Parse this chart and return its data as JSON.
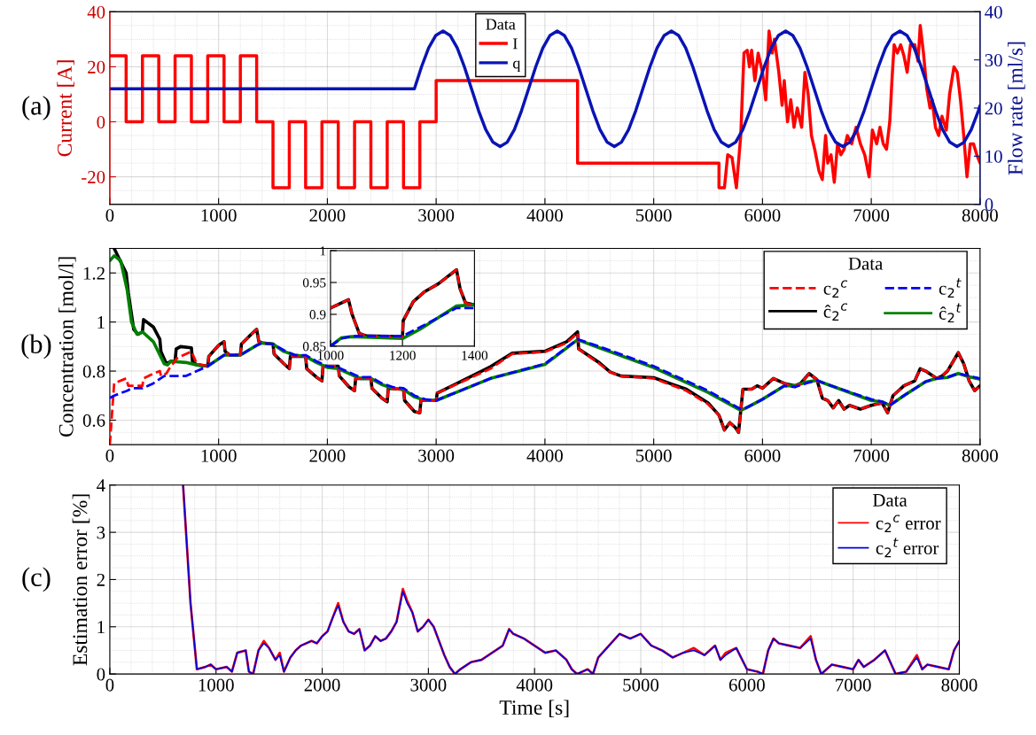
{
  "chart_data": [
    {
      "type": "line",
      "ylabel": "Current [A]",
      "y2label": "Flow rate [ml/s]",
      "legend_title": "Data",
      "legend": "top",
      "grid": true,
      "annotations": [
        "(a)"
      ],
      "xlim": [
        0,
        8000
      ],
      "xticks": [
        0,
        1000,
        2000,
        3000,
        4000,
        5000,
        6000,
        7000,
        8000
      ],
      "ylim": [
        -30,
        40
      ],
      "yticks": [
        -20,
        0,
        20,
        40
      ],
      "y2lim": [
        0,
        40
      ],
      "y2ticks": [
        0,
        10,
        20,
        30,
        40
      ],
      "series": [
        {
          "name": "I",
          "color": "#ff0000",
          "line_style": "solid",
          "x": [
            0,
            150,
            150,
            300,
            300,
            450,
            450,
            600,
            600,
            750,
            750,
            900,
            900,
            1050,
            1050,
            1200,
            1200,
            1350,
            1350,
            1500,
            1500,
            1650,
            1650,
            1800,
            1800,
            1950,
            1950,
            2100,
            2100,
            2250,
            2250,
            2400,
            2400,
            2550,
            2550,
            2700,
            2700,
            2850,
            2850,
            3000,
            3000,
            4300,
            4300,
            5600,
            5600,
            5650,
            5680,
            5720,
            5760,
            5800,
            5830,
            5860,
            5880,
            5900,
            5930,
            5960,
            6000,
            6030,
            6060,
            6090,
            6110,
            6150,
            6180,
            6200,
            6230,
            6260,
            6290,
            6320,
            6360,
            6390,
            6420,
            6450,
            6480,
            6520,
            6550,
            6580,
            6600,
            6630,
            6660,
            6690,
            6720,
            6750,
            6780,
            6820,
            6860,
            6900,
            6940,
            6980,
            7010,
            7050,
            7080,
            7110,
            7140,
            7170,
            7190,
            7210,
            7240,
            7270,
            7300,
            7330,
            7360,
            7400,
            7430,
            7450,
            7480,
            7510,
            7540,
            7560,
            7590,
            7620,
            7650,
            7690,
            7720,
            7760,
            7790,
            7820,
            7850,
            7880,
            7910,
            7940,
            7970,
            8000
          ],
          "values": [
            24,
            24,
            0,
            0,
            24,
            24,
            0,
            0,
            24,
            24,
            0,
            0,
            24,
            24,
            0,
            0,
            24,
            24,
            0,
            0,
            -24,
            -24,
            0,
            0,
            -24,
            -24,
            0,
            0,
            -24,
            -24,
            0,
            0,
            -24,
            -24,
            0,
            0,
            -24,
            -24,
            0,
            0,
            15,
            15,
            -15,
            -15,
            -24,
            -24,
            -12,
            -13,
            -24,
            -5,
            25,
            26,
            20,
            26,
            15,
            25,
            18,
            8,
            33,
            25,
            30,
            18,
            6,
            15,
            0,
            8,
            -2,
            5,
            -2,
            18,
            10,
            -5,
            -10,
            -18,
            -21,
            -5,
            -15,
            -12,
            -22,
            -8,
            -12,
            -10,
            -5,
            -8,
            -2,
            -8,
            -12,
            -20,
            -3,
            -8,
            -2,
            -8,
            -10,
            0,
            15,
            28,
            25,
            28,
            24,
            18,
            28,
            28,
            22,
            35,
            25,
            12,
            5,
            8,
            -2,
            -5,
            2,
            -3,
            10,
            20,
            18,
            8,
            -5,
            -20,
            -8,
            -8,
            -12,
            -15
          ]
        },
        {
          "name": "q",
          "color": "#0a14b4",
          "line_style": "solid",
          "axis": "y2",
          "x": [
            0,
            2800,
            2866,
            2931,
            2997,
            3063,
            3128,
            3194,
            3259,
            3325,
            3391,
            3456,
            3522,
            3588,
            3653,
            3719,
            3784,
            3850,
            3916,
            3981,
            4047,
            4113,
            4178,
            4244,
            4309,
            4375,
            4441,
            4506,
            4572,
            4638,
            4703,
            4769,
            4834,
            4900,
            4966,
            5031,
            5097,
            5163,
            5228,
            5294,
            5359,
            5425,
            5491,
            5556,
            5622,
            5688,
            5753,
            5819,
            5884,
            5950,
            6016,
            6081,
            6147,
            6213,
            6278,
            6344,
            6409,
            6475,
            6541,
            6606,
            6672,
            6738,
            6803,
            6869,
            6934,
            7000,
            7066,
            7131,
            7197,
            7263,
            7328,
            7394,
            7459,
            7525,
            7591,
            7656,
            7722,
            7788,
            7853,
            7919,
            7984,
            8000
          ],
          "values": [
            24,
            24,
            28.6,
            32.5,
            35.1,
            36,
            35.1,
            32.5,
            28.6,
            24,
            19.4,
            15.5,
            12.9,
            12,
            12.9,
            15.5,
            19.4,
            24,
            28.6,
            32.5,
            35.1,
            36,
            35.1,
            32.5,
            28.6,
            24,
            19.4,
            15.5,
            12.9,
            12,
            12.9,
            15.5,
            19.4,
            24,
            28.6,
            32.5,
            35.1,
            36,
            35.1,
            32.5,
            28.6,
            24,
            19.4,
            15.5,
            12.9,
            12,
            12.9,
            15.5,
            19.4,
            24,
            28.6,
            32.5,
            35.1,
            36,
            35.1,
            32.5,
            28.6,
            24,
            19.4,
            15.5,
            12.9,
            12,
            12.9,
            15.5,
            19.4,
            24,
            28.6,
            32.5,
            35.1,
            36,
            35.1,
            32.5,
            28.6,
            24,
            19.4,
            15.5,
            12.9,
            12,
            12.9,
            15.5,
            19.4,
            20.5
          ]
        }
      ]
    },
    {
      "type": "line",
      "ylabel": "Concentration [mol/l]",
      "legend_title": "Data",
      "legend": "top right",
      "grid": true,
      "annotations": [
        "(b)"
      ],
      "xlim": [
        0,
        8000
      ],
      "xticks": [
        0,
        1000,
        2000,
        3000,
        4000,
        5000,
        6000,
        7000,
        8000
      ],
      "ylim": [
        0.5,
        1.3
      ],
      "yticks": [
        0.6,
        0.8,
        1,
        1.2
      ],
      "series": [
        {
          "name": "c$_{2}$$^{c}$",
          "color": "#ff0000",
          "line_style": "dashed",
          "x": [
            0,
            40,
            150,
            170,
            220,
            260,
            300,
            310,
            400,
            460,
            470,
            520,
            560,
            600,
            610,
            650,
            750,
            760,
            800,
            900,
            910,
            1000,
            1050,
            1060,
            1100,
            1200,
            1210,
            1300,
            1350,
            1370,
            1400,
            1500,
            1510,
            1600,
            1650,
            1660,
            1800,
            1810,
            1900,
            1950,
            1960,
            2100,
            2110,
            2200,
            2250,
            2260,
            2400,
            2410,
            2500,
            2550,
            2560,
            2700,
            2710,
            2800,
            2850,
            2860,
            3000,
            3010,
            3500,
            3700,
            4000,
            4200,
            4300,
            4310,
            4500,
            4600,
            4700,
            5000,
            5300,
            5500,
            5600,
            5650,
            5700,
            5750,
            5780,
            5820,
            5850,
            5900,
            5950,
            6000,
            6050,
            6100,
            6200,
            6300,
            6350,
            6430,
            6500,
            6550,
            6600,
            6650,
            6700,
            6750,
            6800,
            6900,
            7000,
            7100,
            7150,
            7200,
            7300,
            7400,
            7450,
            7500,
            7600,
            7650,
            7700,
            7800,
            7850,
            7900,
            7950,
            8000
          ],
          "values": [
            0.5,
            0.75,
            0.77,
            0.74,
            0.74,
            0.74,
            0.74,
            0.77,
            0.79,
            0.8,
            0.78,
            0.79,
            0.82,
            0.84,
            0.85,
            0.86,
            0.88,
            0.87,
            0.83,
            0.82,
            0.86,
            0.905,
            0.92,
            0.88,
            0.866,
            0.866,
            0.91,
            0.95,
            0.97,
            0.92,
            0.915,
            0.91,
            0.87,
            0.83,
            0.81,
            0.86,
            0.86,
            0.81,
            0.775,
            0.76,
            0.82,
            0.82,
            0.78,
            0.735,
            0.72,
            0.77,
            0.77,
            0.73,
            0.69,
            0.675,
            0.73,
            0.725,
            0.68,
            0.635,
            0.63,
            0.68,
            0.68,
            0.71,
            0.81,
            0.87,
            0.878,
            0.915,
            0.955,
            0.89,
            0.83,
            0.795,
            0.78,
            0.77,
            0.72,
            0.665,
            0.62,
            0.56,
            0.59,
            0.57,
            0.55,
            0.726,
            0.726,
            0.726,
            0.74,
            0.73,
            0.75,
            0.77,
            0.75,
            0.735,
            0.75,
            0.79,
            0.765,
            0.69,
            0.68,
            0.65,
            0.68,
            0.645,
            0.66,
            0.645,
            0.66,
            0.67,
            0.63,
            0.7,
            0.74,
            0.76,
            0.81,
            0.8,
            0.77,
            0.78,
            0.8,
            0.875,
            0.83,
            0.76,
            0.72,
            0.74
          ]
        },
        {
          "name": "ĉ$_{2}$$^{c}$",
          "color": "#000000",
          "line_style": "solid",
          "x": [
            40,
            150,
            170,
            220,
            260,
            300,
            310,
            400,
            460,
            470,
            520,
            560,
            600,
            610,
            650,
            750,
            760,
            800,
            900,
            910,
            1000,
            1050,
            1060,
            1100,
            1200,
            1210,
            1300,
            1350,
            1370,
            1400,
            1500,
            1510,
            1600,
            1650,
            1660,
            1800,
            1810,
            1900,
            1950,
            1960,
            2100,
            2110,
            2200,
            2250,
            2260,
            2400,
            2410,
            2500,
            2550,
            2560,
            2700,
            2710,
            2800,
            2850,
            2860,
            3000,
            3010,
            3500,
            3700,
            4000,
            4200,
            4300,
            4310,
            4500,
            4600,
            4700,
            5000,
            5300,
            5500,
            5600,
            5650,
            5700,
            5750,
            5780,
            5820,
            5850,
            5900,
            5950,
            6000,
            6050,
            6100,
            6200,
            6300,
            6350,
            6430,
            6500,
            6550,
            6600,
            6650,
            6700,
            6750,
            6800,
            6900,
            7000,
            7100,
            7150,
            7200,
            7300,
            7400,
            7450,
            7500,
            7600,
            7650,
            7700,
            7800,
            7850,
            7900,
            7950,
            8000
          ],
          "values": [
            1.3,
            1.2,
            1.12,
            0.97,
            0.95,
            0.96,
            1.01,
            0.98,
            0.93,
            0.88,
            0.83,
            0.84,
            0.84,
            0.89,
            0.9,
            0.895,
            0.84,
            0.825,
            0.82,
            0.86,
            0.905,
            0.92,
            0.88,
            0.866,
            0.866,
            0.91,
            0.95,
            0.97,
            0.92,
            0.915,
            0.91,
            0.87,
            0.83,
            0.81,
            0.86,
            0.86,
            0.81,
            0.775,
            0.76,
            0.82,
            0.82,
            0.78,
            0.735,
            0.72,
            0.77,
            0.77,
            0.73,
            0.69,
            0.675,
            0.73,
            0.725,
            0.68,
            0.635,
            0.63,
            0.68,
            0.68,
            0.71,
            0.818,
            0.873,
            0.881,
            0.92,
            0.96,
            0.89,
            0.834,
            0.796,
            0.78,
            0.773,
            0.726,
            0.67,
            0.62,
            0.56,
            0.59,
            0.57,
            0.55,
            0.726,
            0.726,
            0.726,
            0.74,
            0.73,
            0.75,
            0.77,
            0.75,
            0.74,
            0.75,
            0.79,
            0.765,
            0.69,
            0.68,
            0.65,
            0.68,
            0.645,
            0.66,
            0.645,
            0.66,
            0.67,
            0.63,
            0.7,
            0.74,
            0.76,
            0.81,
            0.8,
            0.77,
            0.78,
            0.8,
            0.875,
            0.83,
            0.76,
            0.72,
            0.74
          ]
        },
        {
          "name": "c$_{2}$$^{t}$",
          "color": "#0000ff",
          "line_style": "dashed",
          "x": [
            0,
            40,
            100,
            160,
            200,
            250,
            280,
            300,
            400,
            500,
            530,
            560,
            700,
            800,
            900,
            1000,
            1050,
            1200,
            1350,
            1400,
            1500,
            1600,
            1700,
            1800,
            1900,
            2000,
            2100,
            2200,
            2300,
            2400,
            2500,
            2600,
            2700,
            2800,
            2900,
            3000,
            3500,
            4000,
            4300,
            4500,
            5000,
            5500,
            5800,
            5850,
            6000,
            6200,
            6300,
            6400,
            6500,
            6600,
            7000,
            7100,
            7170,
            7300,
            7500,
            7600,
            7700,
            7800,
            7900,
            8000
          ],
          "values": [
            0.69,
            0.7,
            0.71,
            0.72,
            0.73,
            0.73,
            0.73,
            0.73,
            0.75,
            0.78,
            0.78,
            0.78,
            0.78,
            0.8,
            0.82,
            0.85,
            0.865,
            0.865,
            0.905,
            0.915,
            0.91,
            0.885,
            0.865,
            0.865,
            0.84,
            0.82,
            0.815,
            0.795,
            0.775,
            0.775,
            0.75,
            0.735,
            0.73,
            0.7,
            0.685,
            0.68,
            0.77,
            0.83,
            0.93,
            0.9,
            0.82,
            0.72,
            0.645,
            0.65,
            0.685,
            0.74,
            0.735,
            0.75,
            0.762,
            0.745,
            0.685,
            0.675,
            0.66,
            0.7,
            0.757,
            0.77,
            0.775,
            0.79,
            0.78,
            0.77
          ]
        },
        {
          "name": "ĉ$_{2}$$^{t}$",
          "color": "#008000",
          "line_style": "solid",
          "x": [
            0,
            40,
            100,
            160,
            200,
            250,
            280,
            300,
            400,
            500,
            530,
            560,
            700,
            800,
            900,
            1000,
            1050,
            1200,
            1350,
            1400,
            1500,
            1600,
            1700,
            1800,
            1900,
            2000,
            2100,
            2200,
            2300,
            2400,
            2500,
            2600,
            2700,
            2800,
            2900,
            3000,
            3500,
            4000,
            4300,
            4500,
            5000,
            5500,
            5800,
            5850,
            6000,
            6200,
            6300,
            6400,
            6500,
            6600,
            7000,
            7100,
            7170,
            7300,
            7500,
            7600,
            7700,
            7800,
            7900,
            8000
          ],
          "values": [
            1.25,
            1.27,
            1.25,
            1.13,
            1.0,
            0.95,
            0.955,
            0.96,
            0.92,
            0.83,
            0.825,
            0.84,
            0.835,
            0.825,
            0.82,
            0.85,
            0.865,
            0.865,
            0.905,
            0.915,
            0.91,
            0.88,
            0.865,
            0.86,
            0.835,
            0.815,
            0.81,
            0.79,
            0.77,
            0.77,
            0.745,
            0.73,
            0.725,
            0.695,
            0.68,
            0.68,
            0.77,
            0.827,
            0.928,
            0.895,
            0.814,
            0.713,
            0.64,
            0.65,
            0.685,
            0.74,
            0.74,
            0.755,
            0.762,
            0.745,
            0.68,
            0.675,
            0.66,
            0.7,
            0.757,
            0.77,
            0.774,
            0.79,
            0.777,
            0.767
          ]
        }
      ]
    },
    {
      "type": "line",
      "grid": true,
      "xlim": [
        1000,
        1400
      ],
      "xticks": [
        1000,
        1200,
        1400
      ],
      "ylim": [
        0.85,
        1
      ],
      "yticks": [
        0.85,
        0.9,
        0.95,
        1
      ],
      "series": [
        {
          "color": "#ff0000",
          "line_style": "dashed",
          "x": [
            1000,
            1050,
            1060,
            1080,
            1100,
            1200,
            1202,
            1230,
            1260,
            1300,
            1350,
            1360,
            1375,
            1400
          ],
          "values": [
            0.91,
            0.923,
            0.9,
            0.87,
            0.866,
            0.865,
            0.89,
            0.92,
            0.935,
            0.948,
            0.97,
            0.94,
            0.918,
            0.913
          ]
        },
        {
          "color": "#000000",
          "line_style": "solid",
          "x": [
            1000,
            1050,
            1060,
            1080,
            1100,
            1200,
            1202,
            1230,
            1260,
            1300,
            1350,
            1360,
            1375,
            1400
          ],
          "values": [
            0.91,
            0.923,
            0.9,
            0.87,
            0.866,
            0.865,
            0.89,
            0.92,
            0.935,
            0.948,
            0.97,
            0.94,
            0.918,
            0.915
          ]
        },
        {
          "color": "#0000ff",
          "line_style": "dashed",
          "x": [
            1000,
            1030,
            1060,
            1200,
            1250,
            1300,
            1350,
            1400
          ],
          "values": [
            0.85,
            0.862,
            0.866,
            0.866,
            0.88,
            0.895,
            0.91,
            0.91
          ]
        },
        {
          "color": "#008000",
          "line_style": "solid",
          "x": [
            1000,
            1030,
            1060,
            1200,
            1250,
            1300,
            1350,
            1400
          ],
          "values": [
            0.85,
            0.863,
            0.865,
            0.862,
            0.877,
            0.895,
            0.913,
            0.915
          ]
        }
      ]
    },
    {
      "type": "line",
      "xlabel": "Time [s]",
      "ylabel": "Estimation error [%]",
      "legend_title": "Data",
      "legend": "top right",
      "grid": true,
      "annotations": [
        "(c)"
      ],
      "xlim": [
        0,
        8000
      ],
      "xticks": [
        0,
        1000,
        2000,
        3000,
        4000,
        5000,
        6000,
        7000,
        8000
      ],
      "ylim": [
        0,
        4
      ],
      "yticks": [
        0,
        1,
        2,
        3,
        4
      ],
      "x": [
        690,
        760,
        820,
        900,
        950,
        1000,
        1100,
        1150,
        1200,
        1280,
        1310,
        1350,
        1400,
        1450,
        1500,
        1560,
        1600,
        1640,
        1700,
        1750,
        1800,
        1900,
        1950,
        2000,
        2050,
        2100,
        2150,
        2200,
        2250,
        2300,
        2350,
        2400,
        2450,
        2500,
        2550,
        2600,
        2650,
        2700,
        2760,
        2800,
        2850,
        2900,
        2950,
        3000,
        3050,
        3100,
        3150,
        3200,
        3250,
        3300,
        3400,
        3500,
        3600,
        3700,
        3760,
        3800,
        3900,
        4000,
        4100,
        4200,
        4300,
        4350,
        4400,
        4500,
        4550,
        4600,
        4700,
        4800,
        4900,
        5000,
        5100,
        5200,
        5300,
        5400,
        5500,
        5600,
        5700,
        5750,
        5800,
        5900,
        6000,
        6100,
        6150,
        6200,
        6250,
        6300,
        6400,
        6500,
        6600,
        6650,
        6700,
        6800,
        6900,
        7000,
        7050,
        7100,
        7200,
        7300,
        7400,
        7500,
        7600,
        7650,
        7700,
        7800,
        7900,
        7950,
        8000
      ],
      "series": [
        {
          "name": "c$_{2}$$^{c}$ error",
          "color": "#ff0000",
          "line_style": "solid",
          "values": [
            4.0,
            1.5,
            0.1,
            0.15,
            0.2,
            0.1,
            0.15,
            0.05,
            0.45,
            0.5,
            0.05,
            0,
            0.5,
            0.7,
            0.55,
            0.3,
            0.45,
            0.05,
            0.35,
            0.5,
            0.6,
            0.7,
            0.65,
            0.8,
            0.9,
            1.2,
            1.5,
            1.1,
            0.9,
            0.85,
            0.95,
            0.5,
            0.6,
            0.8,
            0.7,
            0.75,
            0.9,
            1.1,
            1.8,
            1.55,
            1.3,
            0.9,
            1.0,
            1.15,
            1.0,
            0.7,
            0.4,
            0.15,
            0,
            0.1,
            0.25,
            0.3,
            0.45,
            0.6,
            0.95,
            0.85,
            0.75,
            0.6,
            0.45,
            0.5,
            0.3,
            0.1,
            0,
            0.1,
            0,
            0.35,
            0.6,
            0.85,
            0.75,
            0.85,
            0.6,
            0.5,
            0.35,
            0.45,
            0.55,
            0.4,
            0.6,
            0.3,
            0.45,
            0.55,
            0.1,
            0.05,
            0,
            0.5,
            0.75,
            0.65,
            0.6,
            0.55,
            0.8,
            0.3,
            0,
            0.2,
            0.15,
            0.1,
            0.3,
            0.15,
            0.3,
            0.5,
            0,
            0.05,
            0.4,
            0.1,
            0.2,
            0.15,
            0.1,
            0.5,
            0.7
          ]
        },
        {
          "name": "c$_{2}$$^{t}$ error",
          "color": "#0000e0",
          "line_style": "solid",
          "values": [
            4.0,
            1.5,
            0.1,
            0.15,
            0.2,
            0.1,
            0.15,
            0.05,
            0.45,
            0.5,
            0.05,
            0,
            0.5,
            0.65,
            0.55,
            0.3,
            0.4,
            0.05,
            0.35,
            0.5,
            0.6,
            0.7,
            0.65,
            0.8,
            0.9,
            1.2,
            1.45,
            1.1,
            0.9,
            0.85,
            0.95,
            0.5,
            0.6,
            0.8,
            0.7,
            0.75,
            0.9,
            1.1,
            1.75,
            1.5,
            1.3,
            0.9,
            1.0,
            1.15,
            1.0,
            0.7,
            0.4,
            0.15,
            0,
            0.1,
            0.25,
            0.3,
            0.45,
            0.6,
            0.95,
            0.85,
            0.75,
            0.6,
            0.45,
            0.5,
            0.3,
            0.1,
            0,
            0.1,
            0,
            0.35,
            0.6,
            0.85,
            0.75,
            0.85,
            0.6,
            0.5,
            0.35,
            0.45,
            0.5,
            0.4,
            0.6,
            0.3,
            0.4,
            0.55,
            0.1,
            0.05,
            0,
            0.5,
            0.75,
            0.65,
            0.6,
            0.55,
            0.75,
            0.3,
            0,
            0.2,
            0.15,
            0.1,
            0.3,
            0.15,
            0.3,
            0.5,
            0,
            0.05,
            0.35,
            0.1,
            0.2,
            0.15,
            0.1,
            0.5,
            0.7
          ]
        }
      ]
    }
  ]
}
